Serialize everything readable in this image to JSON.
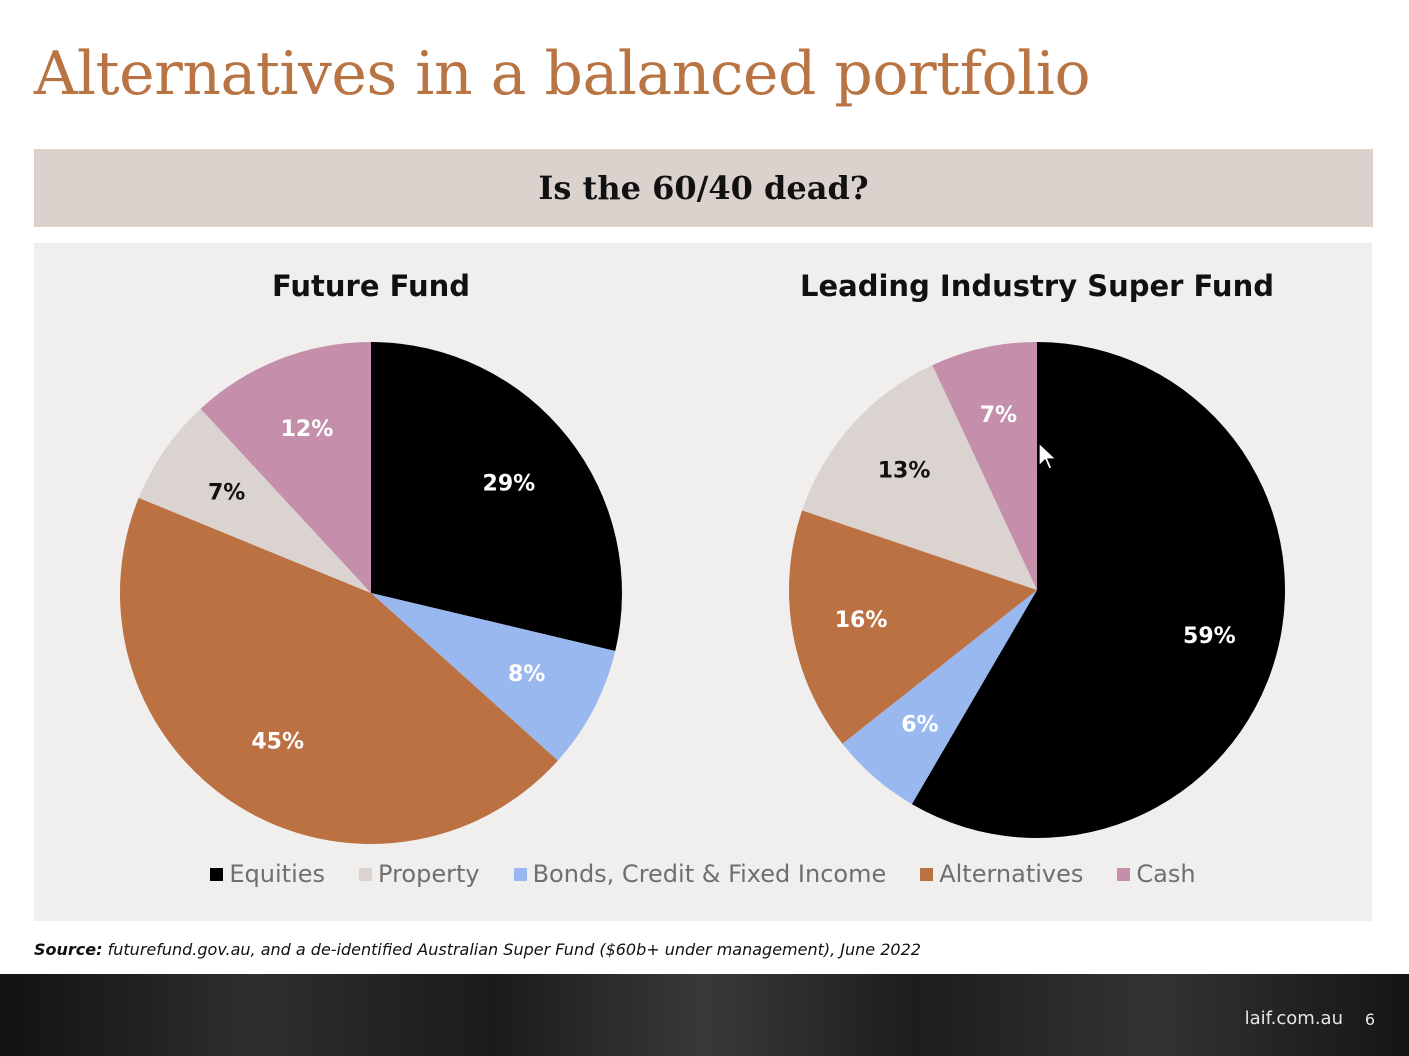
{
  "slide": {
    "title": "Alternatives in a balanced portfolio",
    "subtitle": "Is the 60/40 dead?",
    "source_label": "Source:",
    "source_text": "futurefund.gov.au, and a de-identified Australian Super Fund ($60b+ under management), June 2022",
    "footer_site": "laif.com.au",
    "page_number": "6"
  },
  "colors": {
    "Equities": "#000000",
    "Property": "#dad3d0",
    "Bonds, Credit & Fixed Income": "#99b8f0",
    "Alternatives": "#bc7142",
    "Cash": "#c58fab"
  },
  "label_colors": {
    "Equities": "#ffffff",
    "Property": "#111111",
    "Bonds, Credit & Fixed Income": "#ffffff",
    "Alternatives": "#ffffff",
    "Cash": "#ffffff"
  },
  "chart_data": [
    {
      "type": "pie",
      "title": "Future Fund",
      "slices": [
        {
          "label": "Equities",
          "value": 29,
          "display": "29%"
        },
        {
          "label": "Bonds, Credit & Fixed Income",
          "value": 8,
          "display": "8%"
        },
        {
          "label": "Alternatives",
          "value": 45,
          "display": "45%"
        },
        {
          "label": "Property",
          "value": 7,
          "display": "7%"
        },
        {
          "label": "Cash",
          "value": 12,
          "display": "12%"
        }
      ],
      "legend": [
        "Equities",
        "Property",
        "Bonds, Credit & Fixed Income",
        "Alternatives",
        "Cash"
      ],
      "legend_position": "bottom"
    },
    {
      "type": "pie",
      "title": "Leading Industry Super Fund",
      "slices": [
        {
          "label": "Equities",
          "value": 59,
          "display": "59%"
        },
        {
          "label": "Bonds, Credit & Fixed Income",
          "value": 6,
          "display": "6%"
        },
        {
          "label": "Alternatives",
          "value": 16,
          "display": "16%"
        },
        {
          "label": "Property",
          "value": 13,
          "display": "13%"
        },
        {
          "label": "Cash",
          "value": 7,
          "display": "7%"
        }
      ],
      "legend": [
        "Equities",
        "Property",
        "Bonds, Credit & Fixed Income",
        "Alternatives",
        "Cash"
      ],
      "legend_position": "bottom"
    }
  ]
}
